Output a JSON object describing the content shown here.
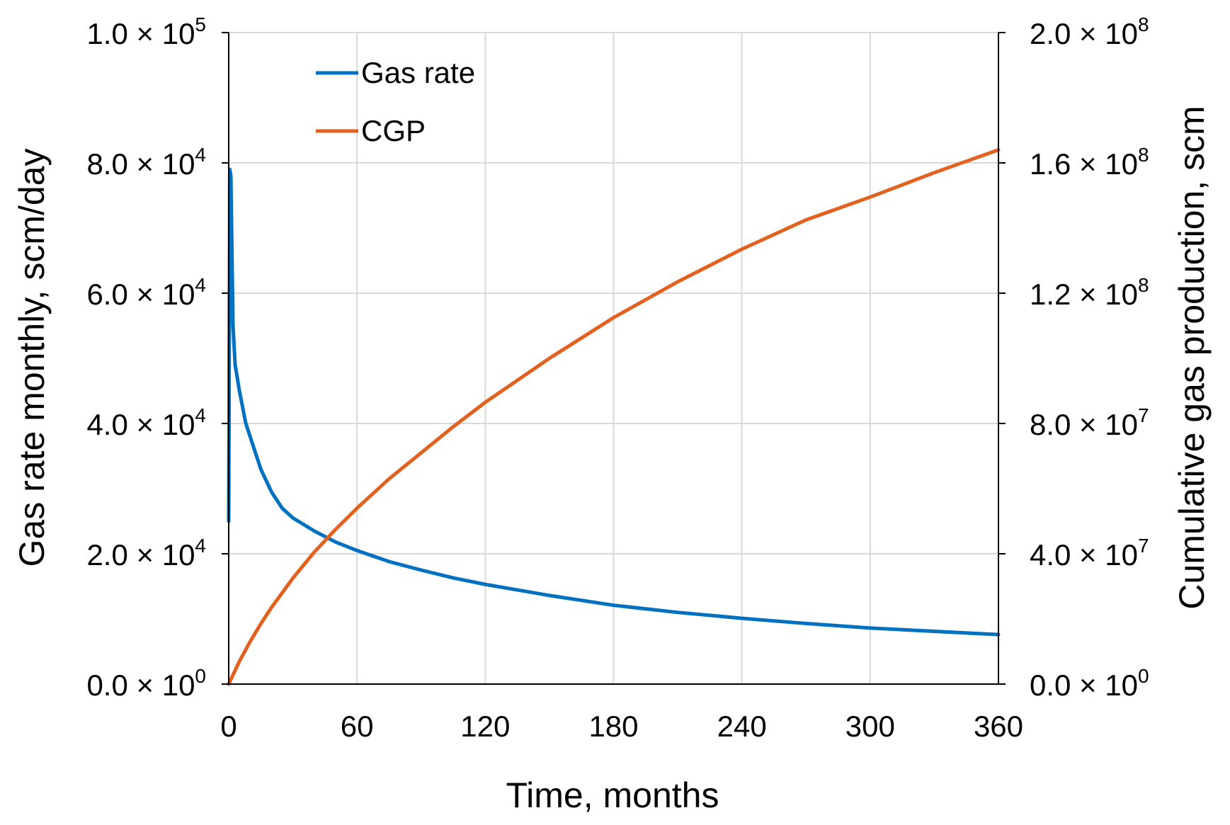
{
  "chart_data": {
    "type": "line",
    "title": "",
    "xlabel": "Time, months",
    "ylabel_left": "Gas rate monthly, scm/day",
    "ylabel_right": "Cumulative gas production, scm",
    "xlim": [
      0,
      360
    ],
    "ylim_left": [
      0,
      100000
    ],
    "ylim_right": [
      0,
      200000000
    ],
    "x_ticks": [
      0,
      60,
      120,
      180,
      240,
      300,
      360
    ],
    "x_tick_labels": [
      "0",
      "60",
      "120",
      "180",
      "240",
      "300",
      "360"
    ],
    "y_left_ticks": [
      0,
      20000,
      40000,
      60000,
      80000,
      100000
    ],
    "y_left_tick_labels": [
      {
        "mantissa": "0.0",
        "exp": "0"
      },
      {
        "mantissa": "2.0",
        "exp": "4"
      },
      {
        "mantissa": "4.0",
        "exp": "4"
      },
      {
        "mantissa": "6.0",
        "exp": "4"
      },
      {
        "mantissa": "8.0",
        "exp": "4"
      },
      {
        "mantissa": "1.0",
        "exp": "5"
      }
    ],
    "y_right_ticks": [
      0,
      40000000,
      80000000,
      120000000,
      160000000,
      200000000
    ],
    "y_right_tick_labels": [
      {
        "mantissa": "0.0",
        "exp": "0"
      },
      {
        "mantissa": "4.0",
        "exp": "7"
      },
      {
        "mantissa": "8.0",
        "exp": "7"
      },
      {
        "mantissa": "1.2",
        "exp": "8"
      },
      {
        "mantissa": "1.6",
        "exp": "8"
      },
      {
        "mantissa": "2.0",
        "exp": "8"
      }
    ],
    "grid": true,
    "legend_position": "top-left",
    "series": [
      {
        "name": "Gas rate",
        "axis": "left",
        "color": "#0070C0",
        "x": [
          0,
          0.5,
          1,
          2,
          3,
          5,
          8,
          10,
          15,
          20,
          25,
          30,
          40,
          50,
          60,
          75,
          90,
          105,
          120,
          150,
          180,
          210,
          240,
          270,
          300,
          330,
          360
        ],
        "y": [
          25000,
          79000,
          78000,
          55000,
          49000,
          45000,
          40000,
          38000,
          33000,
          29500,
          27000,
          25500,
          23500,
          21800,
          20500,
          18800,
          17500,
          16300,
          15300,
          13600,
          12100,
          11000,
          10100,
          9300,
          8600,
          8100,
          7600
        ]
      },
      {
        "name": "CGP",
        "axis": "right",
        "color": "#E2611E",
        "x": [
          0,
          5,
          10,
          15,
          20,
          30,
          40,
          50,
          60,
          75,
          90,
          105,
          120,
          150,
          180,
          210,
          240,
          270,
          300,
          330,
          360
        ],
        "y": [
          0,
          7000000,
          13000000,
          18500000,
          23500000,
          32500000,
          40500000,
          47500000,
          54000000,
          63000000,
          71000000,
          79000000,
          86500000,
          100000000,
          112500000,
          123500000,
          133500000,
          142500000,
          149500000,
          157000000,
          164000000
        ]
      }
    ]
  }
}
